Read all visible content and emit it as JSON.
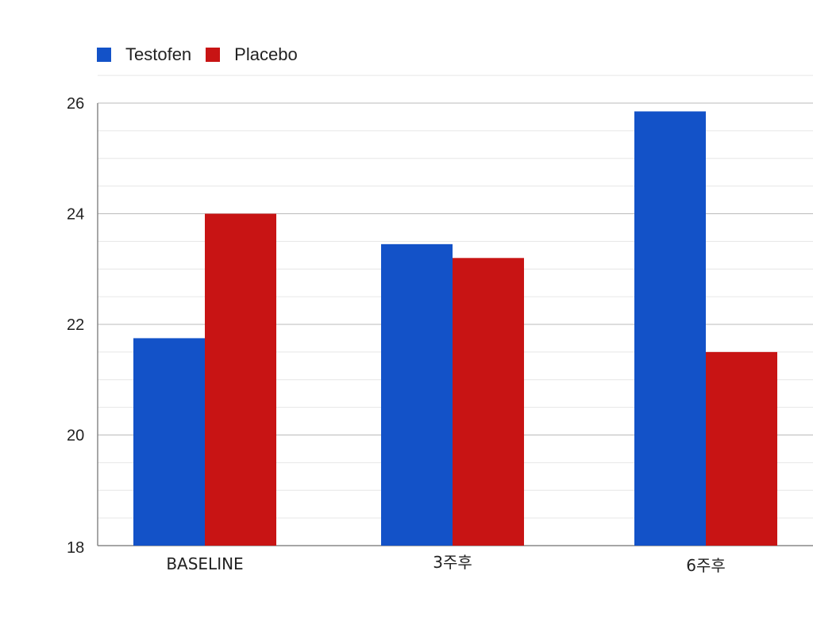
{
  "chart_data": {
    "type": "bar",
    "categories": [
      "BASELINE",
      "3주후",
      "6주후"
    ],
    "series": [
      {
        "name": "Testofen",
        "values": [
          21.75,
          23.45,
          25.85
        ],
        "color": "#1352c8"
      },
      {
        "name": "Placebo",
        "values": [
          24.0,
          23.2,
          21.5
        ],
        "color": "#c81414"
      }
    ],
    "ylim": [
      18,
      26.5
    ],
    "yticks": [
      18,
      20,
      22,
      24,
      26
    ],
    "grid": true,
    "legend_position": "top-left",
    "title": "",
    "xlabel": "",
    "ylabel": ""
  }
}
